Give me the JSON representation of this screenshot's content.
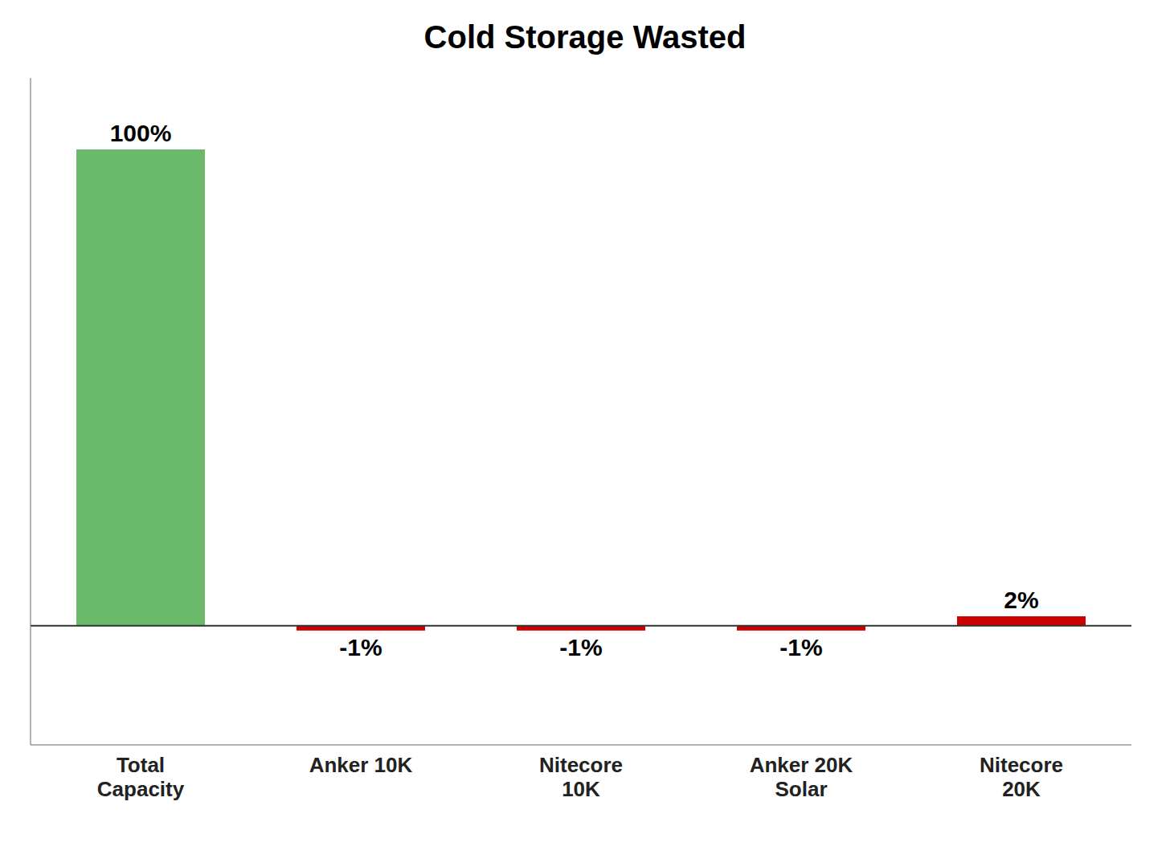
{
  "chart_data": {
    "type": "bar",
    "title": "Cold Storage Wasted",
    "categories": [
      "Total\nCapacity",
      "Anker 10K",
      "Nitecore\n10K",
      "Anker 20K\nSolar",
      "Nitecore\n20K"
    ],
    "values": [
      100,
      -1,
      -1,
      -1,
      2
    ],
    "value_labels": [
      "100%",
      "-1%",
      "-1%",
      "-1%",
      "2%"
    ],
    "colors": [
      "#6aba6a",
      "#cc0000",
      "#cc0000",
      "#cc0000",
      "#cc0000"
    ],
    "ylim": [
      -25,
      115
    ],
    "data_labels": true,
    "tick_labels": "x",
    "grid": false
  }
}
